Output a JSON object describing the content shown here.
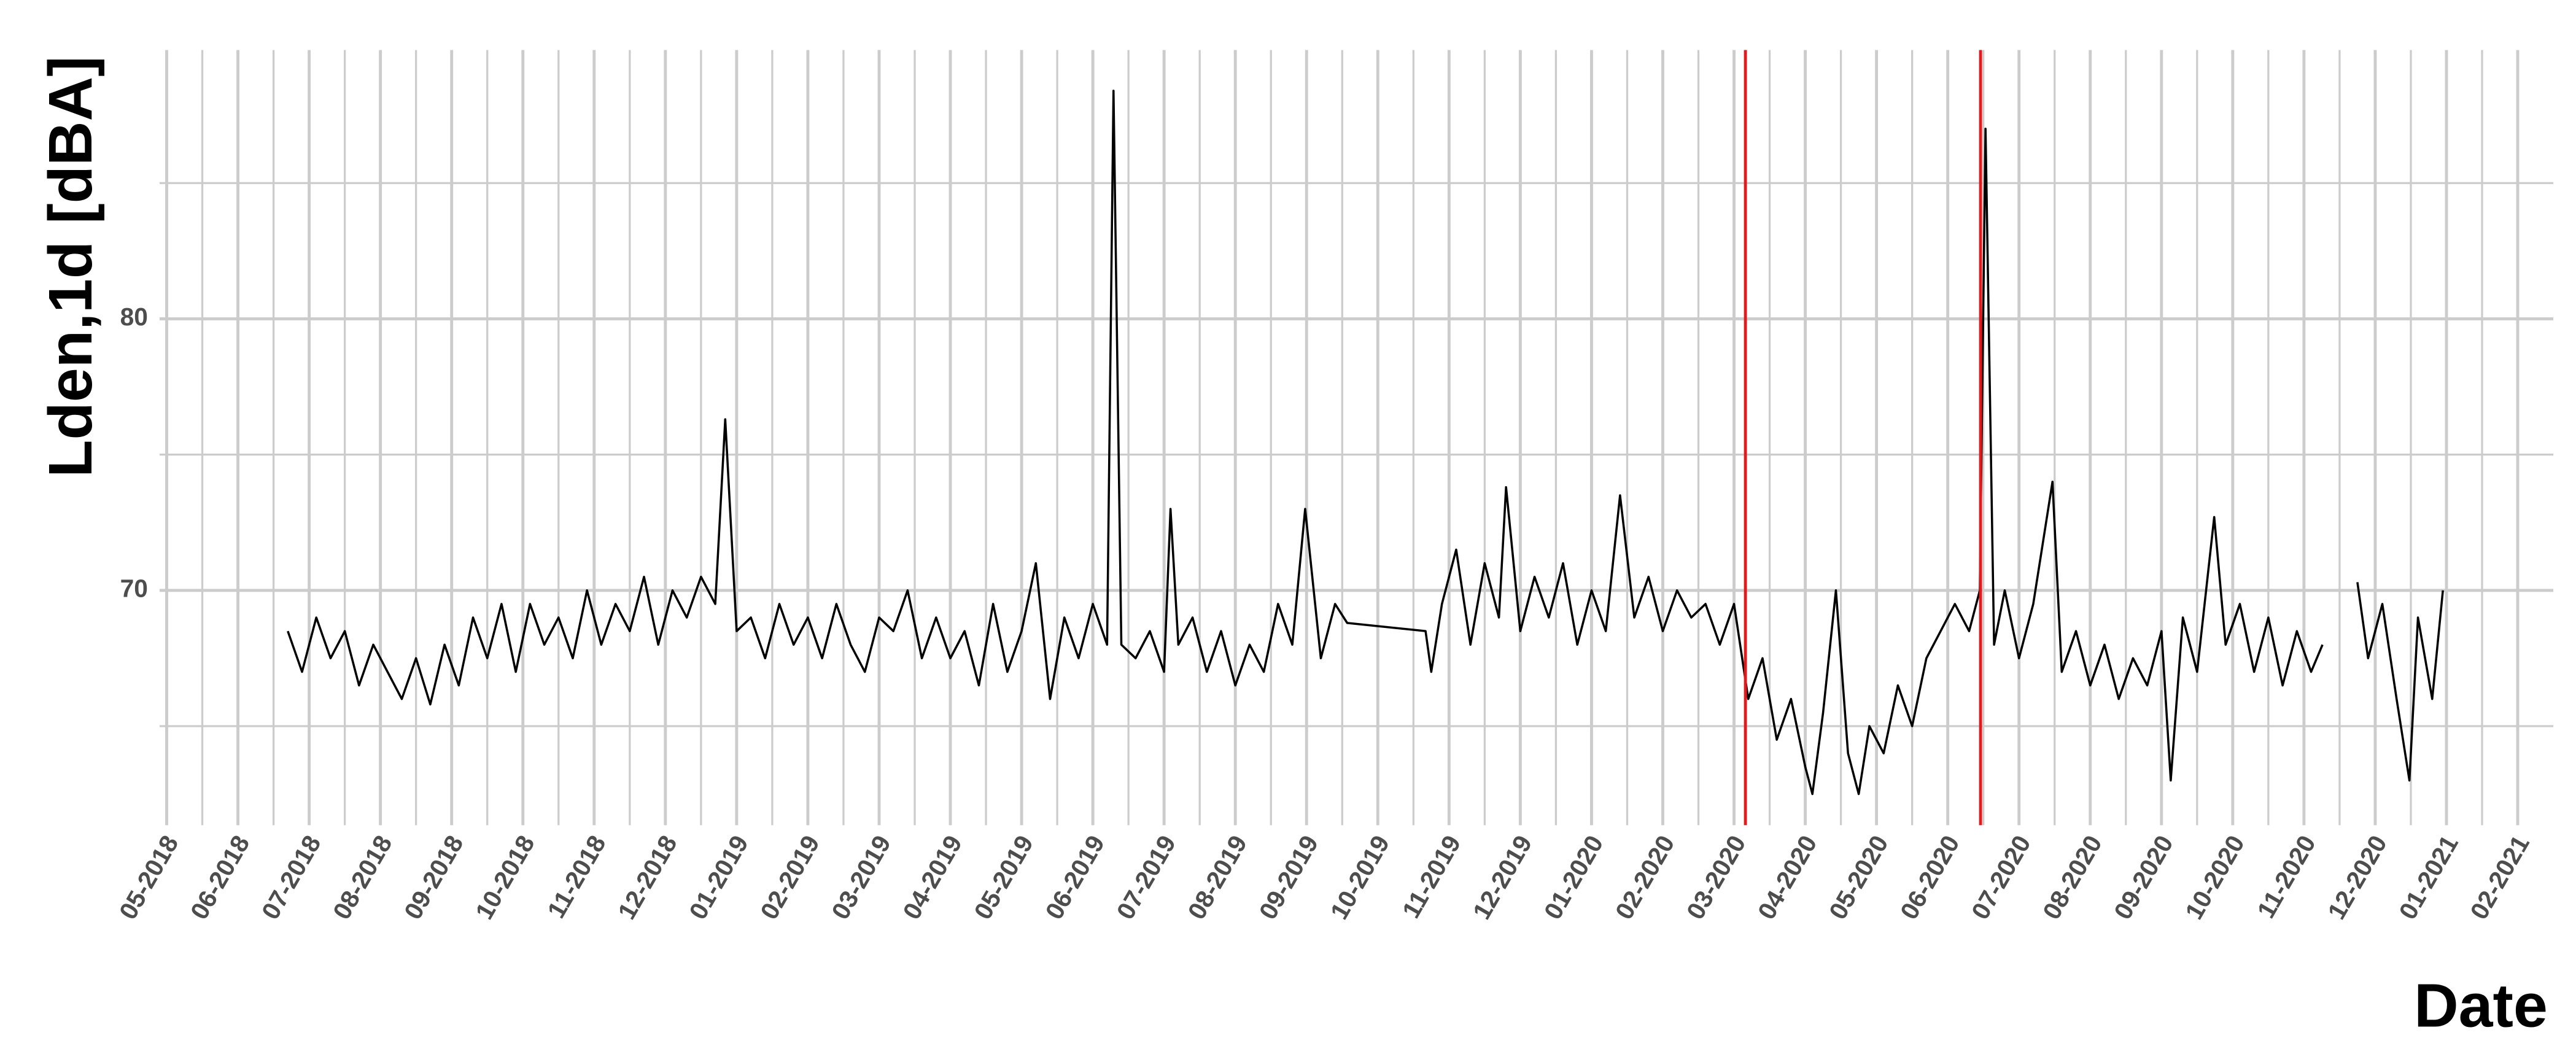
{
  "chart_data": {
    "type": "line",
    "y_label": "Lden,1d [dBA]",
    "x_label": "Date",
    "color": "#000000",
    "grid": true,
    "xlim": [
      -0.1,
      33.5
    ],
    "ylim": [
      61.35,
      89.9
    ],
    "yticks": [
      70,
      80
    ],
    "minor_yticks": [
      65,
      75,
      85
    ],
    "xticks": [
      {
        "value": 0,
        "label": "05-2018"
      },
      {
        "value": 1,
        "label": "06-2018"
      },
      {
        "value": 2,
        "label": "07-2018"
      },
      {
        "value": 3,
        "label": "08-2018"
      },
      {
        "value": 4,
        "label": "09-2018"
      },
      {
        "value": 5,
        "label": "10-2018"
      },
      {
        "value": 6,
        "label": "11-2018"
      },
      {
        "value": 7,
        "label": "12-2018"
      },
      {
        "value": 8,
        "label": "01-2019"
      },
      {
        "value": 9,
        "label": "02-2019"
      },
      {
        "value": 10,
        "label": "03-2019"
      },
      {
        "value": 11,
        "label": "04-2019"
      },
      {
        "value": 12,
        "label": "05-2019"
      },
      {
        "value": 13,
        "label": "06-2019"
      },
      {
        "value": 14,
        "label": "07-2019"
      },
      {
        "value": 15,
        "label": "08-2019"
      },
      {
        "value": 16,
        "label": "09-2019"
      },
      {
        "value": 17,
        "label": "10-2019"
      },
      {
        "value": 18,
        "label": "11-2019"
      },
      {
        "value": 19,
        "label": "12-2019"
      },
      {
        "value": 20,
        "label": "01-2020"
      },
      {
        "value": 21,
        "label": "02-2020"
      },
      {
        "value": 22,
        "label": "03-2020"
      },
      {
        "value": 23,
        "label": "04-2020"
      },
      {
        "value": 24,
        "label": "05-2020"
      },
      {
        "value": 25,
        "label": "06-2020"
      },
      {
        "value": 26,
        "label": "07-2020"
      },
      {
        "value": 27,
        "label": "08-2020"
      },
      {
        "value": 28,
        "label": "09-2020"
      },
      {
        "value": 29,
        "label": "10-2020"
      },
      {
        "value": 30,
        "label": "11-2020"
      },
      {
        "value": 31,
        "label": "12-2020"
      },
      {
        "value": 32,
        "label": "01-2021"
      },
      {
        "value": 33,
        "label": "02-2021"
      }
    ],
    "vlines": [
      {
        "x": 22.16,
        "color": "#e31a1c"
      },
      {
        "x": 25.46,
        "color": "#e31a1c"
      }
    ],
    "x": [
      1.7,
      1.9,
      2.1,
      2.3,
      2.5,
      2.7,
      2.9,
      3.1,
      3.3,
      3.5,
      3.7,
      3.9,
      4.1,
      4.3,
      4.5,
      4.7,
      4.9,
      5.1,
      5.3,
      5.5,
      5.7,
      5.9,
      6.1,
      6.3,
      6.5,
      6.7,
      6.9,
      7.1,
      7.3,
      7.5,
      7.7,
      7.84,
      8.0,
      8.2,
      8.4,
      8.6,
      8.8,
      9.0,
      9.2,
      9.4,
      9.6,
      9.8,
      10.0,
      10.2,
      10.4,
      10.6,
      10.8,
      11.0,
      11.2,
      11.4,
      11.6,
      11.8,
      12.0,
      12.2,
      12.4,
      12.6,
      12.8,
      13.0,
      13.2,
      13.29,
      13.4,
      13.6,
      13.8,
      14.0,
      14.09,
      14.2,
      14.4,
      14.6,
      14.8,
      15.0,
      15.2,
      15.4,
      15.6,
      15.8,
      15.98,
      16.2,
      16.4,
      16.57,
      17.67,
      17.75,
      17.9,
      18.1,
      18.3,
      18.5,
      18.7,
      18.8,
      19.0,
      19.2,
      19.4,
      19.6,
      19.8,
      20.0,
      20.2,
      20.4,
      20.6,
      20.8,
      21.0,
      21.2,
      21.4,
      21.6,
      21.8,
      22.0,
      22.2,
      22.4,
      22.6,
      22.8,
      23.0,
      23.1,
      23.25,
      23.43,
      23.6,
      23.75,
      23.9,
      24.1,
      24.3,
      24.5,
      24.7,
      24.9,
      25.1,
      25.3,
      25.45,
      25.53,
      25.65,
      25.8,
      26.0,
      26.2,
      26.47,
      26.6,
      26.8,
      27.0,
      27.2,
      27.4,
      27.6,
      27.8,
      28.0,
      28.13,
      28.3,
      28.5,
      28.74,
      28.9,
      29.1,
      29.3,
      29.5,
      29.7,
      29.9,
      30.1,
      30.26,
      30.5,
      30.75,
      30.9,
      31.1,
      31.3,
      31.48,
      31.6,
      31.8,
      31.95
    ],
    "values": [
      68.5,
      67,
      69,
      67.5,
      68.5,
      66.5,
      68,
      67,
      66,
      67.5,
      65.8,
      68,
      66.5,
      69,
      67.5,
      69.5,
      67,
      69.5,
      68,
      69,
      67.5,
      70,
      68,
      69.5,
      68.5,
      70.5,
      68,
      70,
      69,
      70.5,
      69.5,
      76.3,
      68.5,
      69,
      67.5,
      69.5,
      68,
      69,
      67.5,
      69.5,
      68,
      67,
      69,
      68.5,
      70,
      67.5,
      69,
      67.5,
      68.5,
      66.5,
      69.5,
      67,
      68.5,
      71,
      66,
      69,
      67.5,
      69.5,
      68,
      88.4,
      68,
      67.5,
      68.5,
      67,
      73,
      68,
      69,
      67,
      68.5,
      66.5,
      68,
      67,
      69.5,
      68,
      73,
      67.5,
      69.5,
      68.8,
      68.5,
      67,
      69.5,
      71.5,
      68,
      71,
      69,
      73.8,
      68.5,
      70.5,
      69,
      71,
      68,
      70,
      68.5,
      73.5,
      69,
      70.5,
      68.5,
      70,
      69,
      69.5,
      68,
      69.5,
      66,
      67.5,
      64.5,
      66,
      63.5,
      62.5,
      65.5,
      70,
      64,
      62.5,
      65,
      64,
      66.5,
      65,
      67.5,
      68.5,
      69.5,
      68.5,
      70,
      87,
      68,
      70,
      67.5,
      69.5,
      74,
      67,
      68.5,
      66.5,
      68,
      66,
      67.5,
      66.5,
      68.5,
      63,
      69,
      67,
      72.7,
      68,
      69.5,
      67,
      69,
      66.5,
      68.5,
      67,
      68,
      null,
      70.3,
      67.5,
      69.5,
      66,
      63,
      69,
      66,
      70
    ]
  }
}
